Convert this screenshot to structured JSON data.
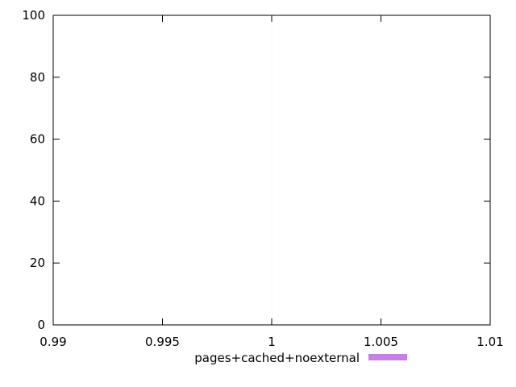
{
  "chart_data": {
    "type": "bar",
    "title": "",
    "xlabel": "",
    "ylabel": "",
    "xlim": [
      0.99,
      1.01
    ],
    "ylim": [
      0,
      100
    ],
    "x_ticks": [
      0.99,
      0.995,
      1,
      1.005,
      1.01
    ],
    "x_tick_labels": [
      "0.99",
      "0.995",
      "1",
      "1.005",
      "1.01"
    ],
    "y_ticks": [
      0,
      20,
      40,
      60,
      80,
      100
    ],
    "y_tick_labels": [
      "0",
      "20",
      "40",
      "60",
      "80",
      "100"
    ],
    "grid": false,
    "legend_position": "bottom-center",
    "series": [
      {
        "name": "pages+cached+noexternal",
        "color": "#c77ee6",
        "points": [
          {
            "x": 1,
            "y": 100
          }
        ]
      }
    ]
  }
}
